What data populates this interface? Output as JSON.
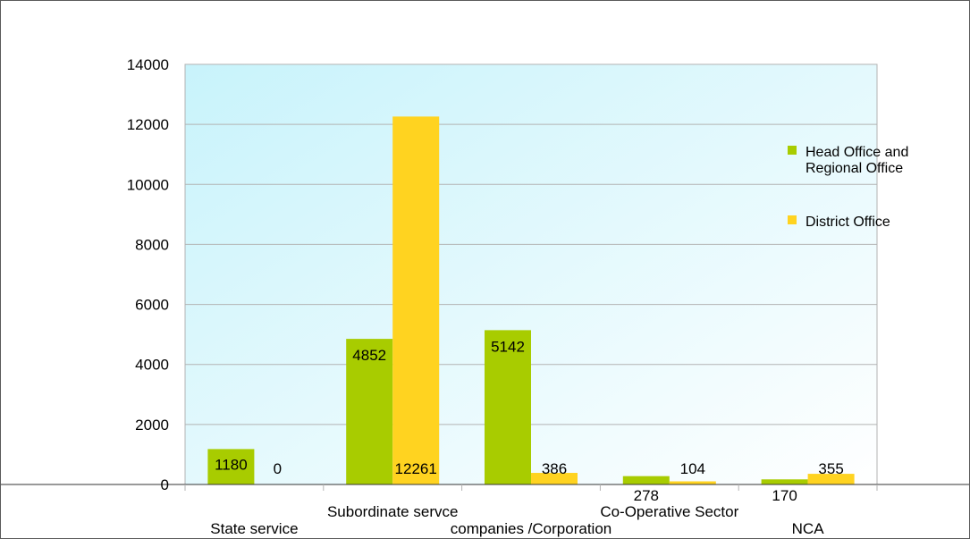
{
  "chart_data": {
    "type": "bar",
    "categories": [
      "State service",
      "Subordinate servce",
      "companies /Corporation",
      "Co-Operative Sector",
      "NCA"
    ],
    "series": [
      {
        "name": "Head Office and Regional Office",
        "values": [
          1180,
          4852,
          5142,
          278,
          170
        ],
        "color": "#a8cc00"
      },
      {
        "name": "District Office",
        "values": [
          0,
          12261,
          386,
          104,
          355
        ],
        "color": "#ffd320"
      }
    ],
    "ylim": [
      0,
      14000
    ],
    "yticks": [
      0,
      2000,
      4000,
      6000,
      8000,
      10000,
      12000,
      14000
    ],
    "grid": true,
    "legend_position": "right",
    "background_gradient": [
      "#c8f3fb",
      "#ffffff"
    ]
  }
}
